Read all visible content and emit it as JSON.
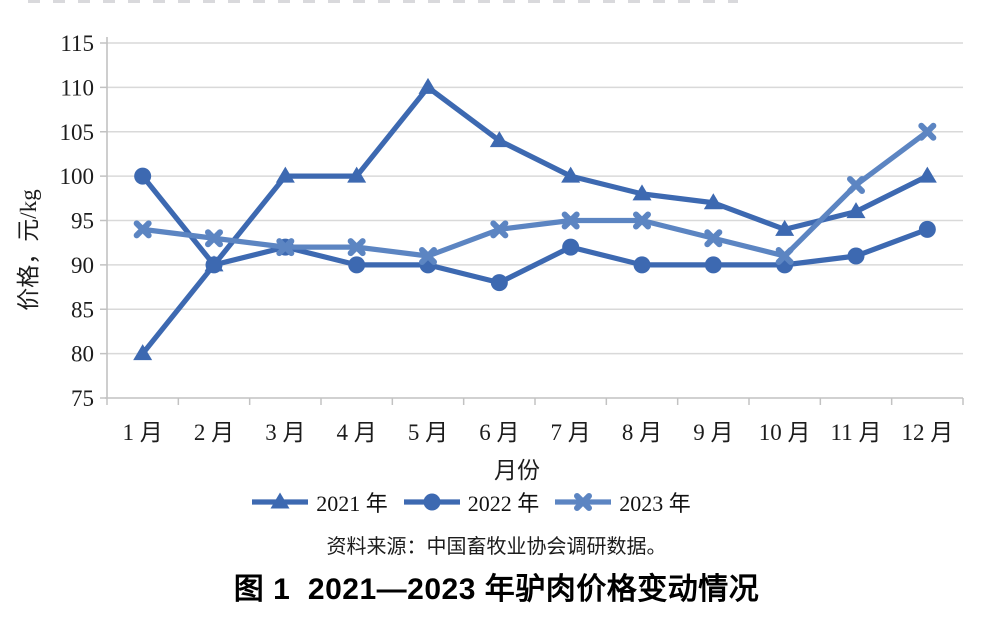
{
  "page": {
    "source_text": "资料来源：中国畜牧业协会调研数据。",
    "caption": "图 1  2021—2023 年驴肉价格变动情况"
  },
  "chart_data": {
    "type": "line",
    "title": "",
    "xlabel": "月份",
    "ylabel": "价格，元/kg",
    "ylim": [
      75,
      115
    ],
    "y_ticks": [
      75,
      80,
      85,
      90,
      95,
      100,
      105,
      110,
      115
    ],
    "categories": [
      "1 月",
      "2 月",
      "3 月",
      "4 月",
      "5 月",
      "6 月",
      "7 月",
      "8 月",
      "9 月",
      "10 月",
      "11 月",
      "12 月"
    ],
    "grid": true,
    "grid_color": "#d9d9d9",
    "axis_color": "#c2c2c2",
    "legend_position": "bottom",
    "series": [
      {
        "name": "2021 年",
        "marker": "triangle",
        "color": "#3d69b1",
        "values": [
          80,
          90,
          100,
          100,
          110,
          104,
          100,
          98,
          97,
          94,
          96,
          100
        ]
      },
      {
        "name": "2022 年",
        "marker": "circle",
        "color": "#3d69b1",
        "values": [
          100,
          90,
          92,
          90,
          90,
          88,
          92,
          90,
          90,
          90,
          91,
          94
        ]
      },
      {
        "name": "2023 年",
        "marker": "x",
        "color": "#5c85c2",
        "values": [
          94,
          93,
          92,
          92,
          91,
          94,
          95,
          95,
          93,
          91,
          99,
          105
        ]
      }
    ]
  }
}
